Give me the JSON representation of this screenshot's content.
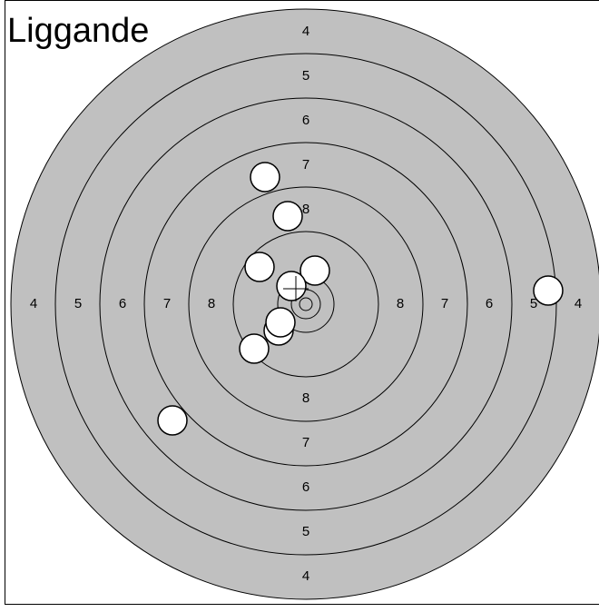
{
  "title": "Liggande",
  "ring_labels": [
    4,
    5,
    6,
    7,
    8
  ]
}
